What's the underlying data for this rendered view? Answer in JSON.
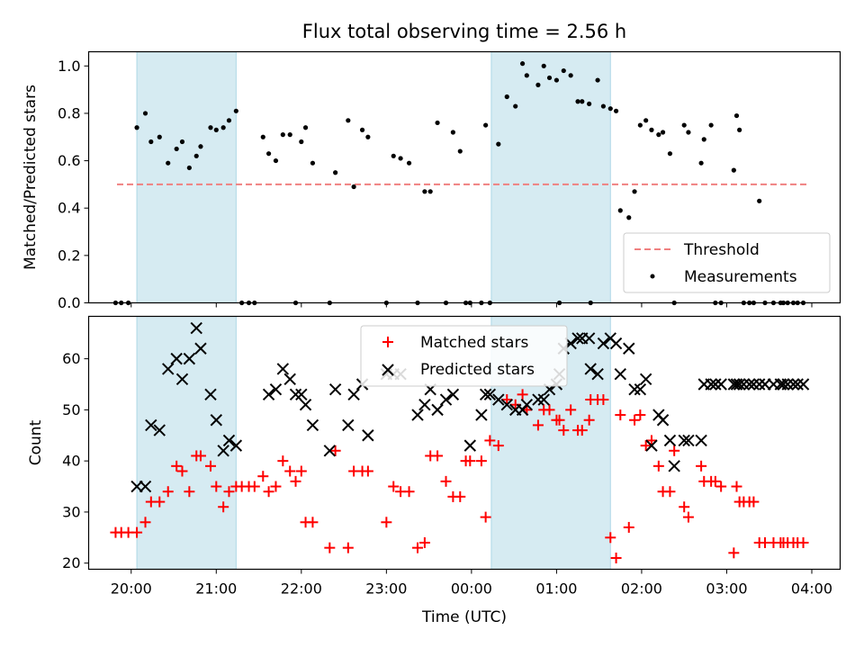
{
  "title": "Flux total observing time = 2.56 h",
  "xlabel": "Time (UTC)",
  "x_ticks": [
    "20:00",
    "21:00",
    "22:00",
    "23:00",
    "00:00",
    "01:00",
    "02:00",
    "03:00",
    "04:00"
  ],
  "colors": {
    "shade": "#add8e6",
    "threshold": "#f08080",
    "matched": "#ff0000",
    "predicted": "#000000",
    "measurement": "#000000"
  },
  "chart_data": [
    {
      "type": "scatter",
      "ylabel": "Matched/Predicted stars",
      "xlim": [
        "19:30",
        "04:20"
      ],
      "ylim": [
        0,
        1.06
      ],
      "y_ticks": [
        "0.0",
        "0.2",
        "0.4",
        "0.6",
        "0.8",
        "1.0"
      ],
      "shaded_intervals": [
        [
          "20:04",
          "21:14"
        ],
        [
          "00:14",
          "01:38"
        ]
      ],
      "threshold": {
        "name": "Threshold",
        "value": 0.5,
        "x_range": [
          "19:50",
          "03:57"
        ]
      },
      "series": [
        {
          "name": "Measurements",
          "marker": "dot",
          "x": [
            "19:49",
            "19:53",
            "19:58",
            "20:04",
            "20:10",
            "20:14",
            "20:20",
            "20:26",
            "20:32",
            "20:36",
            "20:41",
            "20:46",
            "20:49",
            "20:56",
            "21:00",
            "21:05",
            "21:09",
            "21:14",
            "21:18",
            "21:23",
            "21:27",
            "21:33",
            "21:37",
            "21:42",
            "21:47",
            "21:52",
            "21:56",
            "22:00",
            "22:03",
            "22:08",
            "22:20",
            "22:24",
            "22:33",
            "22:37",
            "22:43",
            "22:47",
            "23:00",
            "23:05",
            "23:10",
            "23:16",
            "23:22",
            "23:27",
            "23:31",
            "23:36",
            "23:42",
            "23:47",
            "23:52",
            "23:56",
            "23:59",
            "00:07",
            "00:10",
            "00:13",
            "00:19",
            "00:25",
            "00:31",
            "00:36",
            "00:39",
            "00:47",
            "00:51",
            "00:55",
            "01:00",
            "01:02",
            "01:05",
            "01:10",
            "01:15",
            "01:18",
            "01:23",
            "01:24",
            "01:29",
            "01:33",
            "01:38",
            "01:42",
            "01:45",
            "01:51",
            "01:55",
            "01:59",
            "02:03",
            "02:07",
            "02:12",
            "02:15",
            "02:20",
            "02:23",
            "02:30",
            "02:33",
            "02:42",
            "02:44",
            "02:49",
            "02:52",
            "02:56",
            "03:05",
            "03:07",
            "03:09",
            "03:12",
            "03:16",
            "03:19",
            "03:23",
            "03:27",
            "03:33",
            "03:38",
            "03:40",
            "03:43",
            "03:47",
            "03:50",
            "03:54"
          ],
          "y": [
            0,
            0,
            0,
            0.74,
            0.8,
            0.68,
            0.7,
            0.59,
            0.65,
            0.68,
            0.57,
            0.62,
            0.66,
            0.74,
            0.73,
            0.74,
            0.77,
            0.81,
            0,
            0,
            0,
            0.7,
            0.63,
            0.6,
            0.71,
            0.71,
            0,
            0.68,
            0.74,
            0.59,
            0,
            0.55,
            0.77,
            0.49,
            0.73,
            0.7,
            0,
            0.62,
            0.61,
            0.59,
            0,
            0.47,
            0.47,
            0.76,
            0,
            0.72,
            0.64,
            0,
            0,
            0,
            0.75,
            0,
            0.67,
            0.87,
            0.83,
            1.01,
            0.96,
            0.92,
            1.0,
            0.95,
            0.94,
            0,
            0.98,
            0.96,
            0.85,
            0.85,
            0.84,
            0,
            0.94,
            0.83,
            0.82,
            0.81,
            0.39,
            0.36,
            0.47,
            0.75,
            0.77,
            0.73,
            0.71,
            0.72,
            0.63,
            0,
            0.75,
            0.72,
            0.59,
            0.69,
            0.75,
            0,
            0,
            0.56,
            0.79,
            0.73,
            0,
            0,
            0,
            0.43,
            0,
            0,
            0,
            0,
            0,
            0,
            0,
            0
          ]
        }
      ],
      "legend": {
        "position": "lower right"
      }
    },
    {
      "type": "scatter",
      "ylabel": "Count",
      "xlim": [
        "19:30",
        "04:20"
      ],
      "ylim": [
        18.8,
        68.3
      ],
      "y_ticks": [
        "20",
        "30",
        "40",
        "50",
        "60"
      ],
      "shaded_intervals": [
        [
          "20:04",
          "21:14"
        ],
        [
          "00:14",
          "01:38"
        ]
      ],
      "series": [
        {
          "name": "Matched stars",
          "marker": "plus",
          "x": [
            "19:49",
            "19:53",
            "19:58",
            "20:04",
            "20:10",
            "20:14",
            "20:20",
            "20:26",
            "20:32",
            "20:36",
            "20:41",
            "20:46",
            "20:49",
            "20:56",
            "21:00",
            "21:05",
            "21:09",
            "21:14",
            "21:18",
            "21:23",
            "21:27",
            "21:33",
            "21:37",
            "21:42",
            "21:47",
            "21:52",
            "21:56",
            "22:00",
            "22:03",
            "22:08",
            "22:20",
            "22:24",
            "22:33",
            "22:37",
            "22:43",
            "22:47",
            "23:00",
            "23:05",
            "23:10",
            "23:16",
            "23:22",
            "23:27",
            "23:31",
            "23:36",
            "23:42",
            "23:47",
            "23:52",
            "23:56",
            "23:59",
            "00:07",
            "00:10",
            "00:13",
            "00:19",
            "00:25",
            "00:31",
            "00:36",
            "00:39",
            "00:47",
            "00:51",
            "00:55",
            "01:00",
            "01:02",
            "01:05",
            "01:10",
            "01:15",
            "01:18",
            "01:23",
            "01:24",
            "01:29",
            "01:33",
            "01:38",
            "01:42",
            "01:45",
            "01:51",
            "01:55",
            "01:59",
            "02:03",
            "02:07",
            "02:12",
            "02:15",
            "02:20",
            "02:23",
            "02:30",
            "02:33",
            "02:42",
            "02:44",
            "02:49",
            "02:52",
            "02:56",
            "03:05",
            "03:07",
            "03:09",
            "03:12",
            "03:16",
            "03:19",
            "03:23",
            "03:27",
            "03:33",
            "03:38",
            "03:40",
            "03:43",
            "03:47",
            "03:50",
            "03:54"
          ],
          "y": [
            26,
            26,
            26,
            26,
            28,
            32,
            32,
            34,
            39,
            38,
            34,
            41,
            41,
            39,
            35,
            31,
            34,
            35,
            35,
            35,
            35,
            37,
            34,
            35,
            40,
            38,
            36,
            38,
            28,
            28,
            23,
            42,
            23,
            38,
            38,
            38,
            28,
            35,
            34,
            34,
            23,
            24,
            41,
            41,
            36,
            33,
            33,
            40,
            40,
            40,
            29,
            44,
            43,
            52,
            51,
            53,
            50,
            47,
            50,
            50,
            48,
            48,
            46,
            50,
            46,
            46,
            48,
            52,
            52,
            52,
            25,
            21,
            49,
            27,
            48,
            49,
            43,
            44,
            39,
            34,
            34,
            42,
            31,
            29,
            39,
            36,
            36,
            36,
            35,
            22,
            35,
            32,
            32,
            32,
            32,
            24,
            24,
            24,
            24,
            24,
            24,
            24,
            24,
            24
          ]
        },
        {
          "name": "Predicted stars",
          "marker": "x",
          "x": [
            "20:04",
            "20:10",
            "20:14",
            "20:20",
            "20:26",
            "20:32",
            "20:36",
            "20:41",
            "20:46",
            "20:49",
            "20:56",
            "21:00",
            "21:05",
            "21:09",
            "21:14",
            "21:37",
            "21:42",
            "21:47",
            "21:52",
            "21:56",
            "22:00",
            "22:03",
            "22:08",
            "22:20",
            "22:24",
            "22:33",
            "22:37",
            "22:43",
            "22:47",
            "23:00",
            "23:05",
            "23:10",
            "23:22",
            "23:27",
            "23:31",
            "23:36",
            "23:42",
            "23:47",
            "23:59",
            "00:07",
            "00:10",
            "00:13",
            "00:19",
            "00:25",
            "00:31",
            "00:36",
            "00:39",
            "00:47",
            "00:51",
            "00:55",
            "01:00",
            "01:02",
            "01:05",
            "01:10",
            "01:15",
            "01:18",
            "01:23",
            "01:24",
            "01:29",
            "01:33",
            "01:38",
            "01:42",
            "01:45",
            "01:51",
            "01:55",
            "01:59",
            "02:03",
            "02:07",
            "02:12",
            "02:15",
            "02:20",
            "02:23",
            "02:30",
            "02:33",
            "02:42",
            "02:44",
            "02:49",
            "02:52",
            "02:56",
            "03:05",
            "03:07",
            "03:09",
            "03:12",
            "03:16",
            "03:19",
            "03:23",
            "03:27",
            "03:33",
            "03:38",
            "03:40",
            "03:43",
            "03:47",
            "03:50",
            "03:54"
          ],
          "y": [
            35,
            35,
            47,
            46,
            58,
            60,
            56,
            60,
            66,
            62,
            53,
            48,
            42,
            44,
            43,
            53,
            54,
            58,
            56,
            53,
            53,
            51,
            47,
            42,
            54,
            47,
            53,
            55,
            45,
            57,
            57,
            57,
            49,
            51,
            54,
            50,
            52,
            53,
            43,
            49,
            53,
            53,
            52,
            51,
            50,
            50,
            51,
            52,
            52,
            54,
            55,
            57,
            62,
            63,
            64,
            64,
            64,
            58,
            57,
            63,
            64,
            63,
            57,
            62,
            54,
            54,
            56,
            43,
            49,
            48,
            44,
            39,
            44,
            44,
            44,
            55,
            55,
            55,
            55,
            55,
            55,
            55,
            55,
            55,
            55,
            55,
            55,
            55,
            55,
            55,
            55,
            55,
            55,
            55
          ]
        }
      ],
      "legend": {
        "position": "upper center"
      }
    }
  ]
}
